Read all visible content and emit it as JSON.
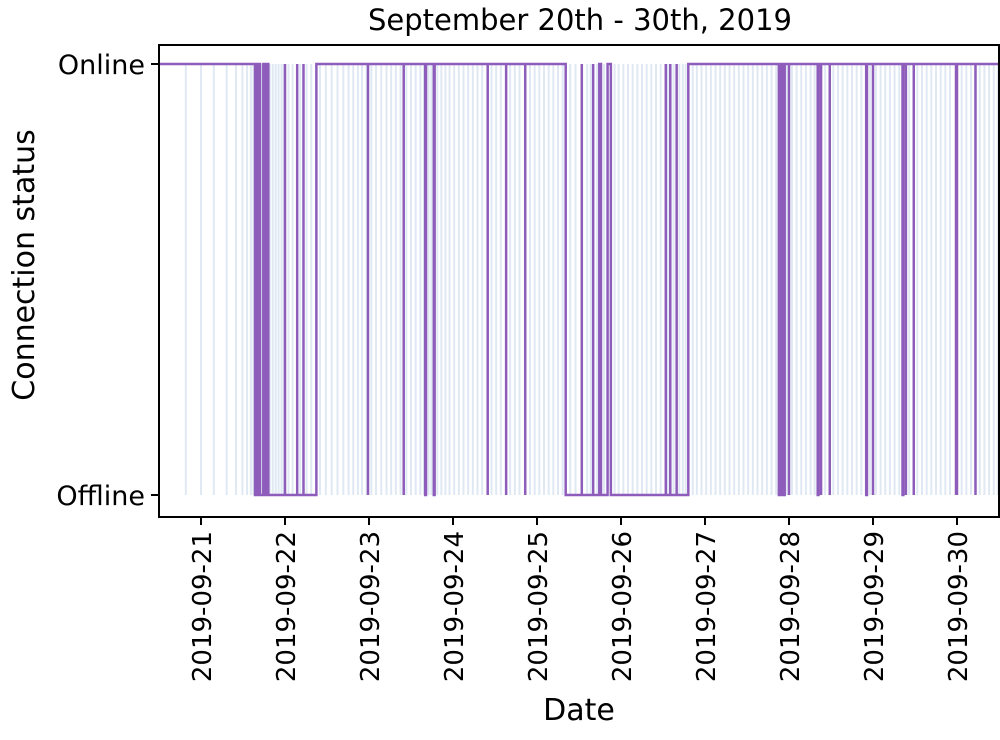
{
  "chart_data": {
    "type": "line",
    "title": "September 20th - 30th, 2019",
    "xlabel": "Date",
    "ylabel": "Connection status",
    "x_axis_type": "date",
    "xlim": [
      "2019-09-20T12:00",
      "2019-09-30T12:00"
    ],
    "y_categories": [
      "Offline",
      "Online"
    ],
    "ylim": [
      0,
      1
    ],
    "grid": false,
    "legend": "none",
    "colors": {
      "line": "#8e5cbb",
      "band": "#dfe8f3"
    },
    "x_ticks": [
      "2019-09-21",
      "2019-09-22",
      "2019-09-23",
      "2019-09-24",
      "2019-09-25",
      "2019-09-26",
      "2019-09-27",
      "2019-09-28",
      "2019-09-29",
      "2019-09-30"
    ],
    "series": [
      {
        "points": [
          [
            "2019-09-20T12:00",
            1
          ],
          [
            "2019-09-21T15:26",
            1
          ],
          [
            "2019-09-21T15:26",
            0
          ],
          [
            "2019-09-21T15:40",
            0
          ],
          [
            "2019-09-21T15:40",
            1
          ],
          [
            "2019-09-21T15:54",
            1
          ],
          [
            "2019-09-21T15:54",
            0
          ],
          [
            "2019-09-21T16:37",
            0
          ],
          [
            "2019-09-21T16:37",
            1
          ],
          [
            "2019-09-21T16:51",
            1
          ],
          [
            "2019-09-21T16:51",
            0
          ],
          [
            "2019-09-21T17:48",
            0
          ],
          [
            "2019-09-21T17:48",
            1
          ],
          [
            "2019-09-21T18:17",
            1
          ],
          [
            "2019-09-21T18:17",
            0
          ],
          [
            "2019-09-21T18:31",
            0
          ],
          [
            "2019-09-21T18:31",
            1
          ],
          [
            "2019-09-21T19:14",
            1
          ],
          [
            "2019-09-21T19:14",
            0
          ],
          [
            "2019-09-21T19:14",
            0
          ],
          [
            "2019-09-22T00:00",
            0
          ],
          [
            "2019-09-22T00:00",
            1
          ],
          [
            "2019-09-22T00:00",
            1
          ],
          [
            "2019-09-22T00:00",
            0
          ],
          [
            "2019-09-22T03:29",
            0
          ],
          [
            "2019-09-22T03:29",
            1
          ],
          [
            "2019-09-22T03:29",
            1
          ],
          [
            "2019-09-22T03:29",
            0
          ],
          [
            "2019-09-22T05:17",
            0
          ],
          [
            "2019-09-22T05:17",
            1
          ],
          [
            "2019-09-22T05:17",
            1
          ],
          [
            "2019-09-22T05:17",
            0
          ],
          [
            "2019-09-22T08:58",
            0
          ],
          [
            "2019-09-22T08:58",
            1
          ],
          [
            "2019-09-22T23:43",
            1
          ],
          [
            "2019-09-22T23:43",
            0
          ],
          [
            "2019-09-22T23:43",
            0
          ],
          [
            "2019-09-22T23:43",
            1
          ],
          [
            "2019-09-23T09:55",
            1
          ],
          [
            "2019-09-23T09:55",
            0
          ],
          [
            "2019-09-23T09:55",
            0
          ],
          [
            "2019-09-23T09:55",
            1
          ],
          [
            "2019-09-23T16:03",
            1
          ],
          [
            "2019-09-23T16:03",
            0
          ],
          [
            "2019-09-23T16:17",
            0
          ],
          [
            "2019-09-23T16:17",
            1
          ],
          [
            "2019-09-23T18:31",
            1
          ],
          [
            "2019-09-23T18:31",
            0
          ],
          [
            "2019-09-23T18:45",
            0
          ],
          [
            "2019-09-23T18:45",
            1
          ],
          [
            "2019-09-24T09:55",
            1
          ],
          [
            "2019-09-24T09:55",
            0
          ],
          [
            "2019-09-24T09:55",
            0
          ],
          [
            "2019-09-24T09:55",
            1
          ],
          [
            "2019-09-24T15:11",
            1
          ],
          [
            "2019-09-24T15:11",
            0
          ],
          [
            "2019-09-24T15:11",
            0
          ],
          [
            "2019-09-24T15:11",
            1
          ],
          [
            "2019-09-24T20:38",
            1
          ],
          [
            "2019-09-24T20:38",
            0
          ],
          [
            "2019-09-24T20:38",
            0
          ],
          [
            "2019-09-24T20:38",
            1
          ],
          [
            "2019-09-25T08:12",
            1
          ],
          [
            "2019-09-25T08:12",
            0
          ],
          [
            "2019-09-25T12:48",
            0
          ],
          [
            "2019-09-25T12:48",
            1
          ],
          [
            "2019-09-25T12:48",
            1
          ],
          [
            "2019-09-25T12:48",
            0
          ],
          [
            "2019-09-25T16:03",
            0
          ],
          [
            "2019-09-25T16:03",
            1
          ],
          [
            "2019-09-25T16:03",
            1
          ],
          [
            "2019-09-25T16:03",
            0
          ],
          [
            "2019-09-25T17:48",
            0
          ],
          [
            "2019-09-25T17:48",
            1
          ],
          [
            "2019-09-25T18:17",
            1
          ],
          [
            "2019-09-25T18:17",
            0
          ],
          [
            "2019-09-25T20:10",
            0
          ],
          [
            "2019-09-25T20:10",
            1
          ],
          [
            "2019-09-25T21:06",
            1
          ],
          [
            "2019-09-25T21:06",
            0
          ],
          [
            "2019-09-26T12:48",
            0
          ],
          [
            "2019-09-26T12:48",
            1
          ],
          [
            "2019-09-26T12:48",
            1
          ],
          [
            "2019-09-26T12:48",
            0
          ],
          [
            "2019-09-26T14:05",
            0
          ],
          [
            "2019-09-26T14:05",
            1
          ],
          [
            "2019-09-26T14:05",
            1
          ],
          [
            "2019-09-26T14:05",
            0
          ],
          [
            "2019-09-26T15:54",
            0
          ],
          [
            "2019-09-26T15:54",
            1
          ],
          [
            "2019-09-26T15:54",
            1
          ],
          [
            "2019-09-26T15:54",
            0
          ],
          [
            "2019-09-26T19:14",
            0
          ],
          [
            "2019-09-26T19:14",
            1
          ],
          [
            "2019-09-27T21:06",
            1
          ],
          [
            "2019-09-27T21:06",
            0
          ],
          [
            "2019-09-27T21:20",
            0
          ],
          [
            "2019-09-27T21:20",
            1
          ],
          [
            "2019-09-27T21:48",
            1
          ],
          [
            "2019-09-27T21:48",
            0
          ],
          [
            "2019-09-27T22:03",
            0
          ],
          [
            "2019-09-27T22:03",
            1
          ],
          [
            "2019-09-27T22:31",
            1
          ],
          [
            "2019-09-27T22:31",
            0
          ],
          [
            "2019-09-27T22:46",
            0
          ],
          [
            "2019-09-27T22:46",
            1
          ],
          [
            "2019-09-28T00:00",
            1
          ],
          [
            "2019-09-28T00:00",
            0
          ],
          [
            "2019-09-28T00:00",
            0
          ],
          [
            "2019-09-28T00:00",
            1
          ],
          [
            "2019-09-28T08:12",
            1
          ],
          [
            "2019-09-28T08:12",
            0
          ],
          [
            "2019-09-28T08:26",
            0
          ],
          [
            "2019-09-28T08:26",
            1
          ],
          [
            "2019-09-28T09:10",
            1
          ],
          [
            "2019-09-28T09:10",
            0
          ],
          [
            "2019-09-28T09:10",
            0
          ],
          [
            "2019-09-28T09:10",
            1
          ],
          [
            "2019-09-28T11:39",
            1
          ],
          [
            "2019-09-28T11:39",
            0
          ],
          [
            "2019-09-28T11:39",
            0
          ],
          [
            "2019-09-28T11:39",
            1
          ],
          [
            "2019-09-28T22:03",
            1
          ],
          [
            "2019-09-28T22:03",
            0
          ],
          [
            "2019-09-28T22:17",
            0
          ],
          [
            "2019-09-28T22:17",
            1
          ],
          [
            "2019-09-29T00:00",
            1
          ],
          [
            "2019-09-29T00:00",
            0
          ],
          [
            "2019-09-29T00:00",
            0
          ],
          [
            "2019-09-29T00:00",
            1
          ],
          [
            "2019-09-29T08:26",
            1
          ],
          [
            "2019-09-29T08:26",
            0
          ],
          [
            "2019-09-29T08:40",
            0
          ],
          [
            "2019-09-29T08:40",
            1
          ],
          [
            "2019-09-29T09:24",
            1
          ],
          [
            "2019-09-29T09:24",
            0
          ],
          [
            "2019-09-29T09:24",
            0
          ],
          [
            "2019-09-29T09:24",
            1
          ],
          [
            "2019-09-29T11:39",
            1
          ],
          [
            "2019-09-29T11:39",
            0
          ],
          [
            "2019-09-29T11:39",
            0
          ],
          [
            "2019-09-29T11:39",
            1
          ],
          [
            "2019-09-29T23:43",
            1
          ],
          [
            "2019-09-29T23:43",
            0
          ],
          [
            "2019-09-29T23:43",
            0
          ],
          [
            "2019-09-29T23:43",
            1
          ],
          [
            "2019-09-30T00:00",
            1
          ],
          [
            "2019-09-30T00:00",
            0
          ],
          [
            "2019-09-30T00:00",
            0
          ],
          [
            "2019-09-30T00:00",
            1
          ],
          [
            "2019-09-30T05:17",
            1
          ],
          [
            "2019-09-30T05:17",
            0
          ],
          [
            "2019-09-30T05:17",
            0
          ],
          [
            "2019-09-30T05:17",
            1
          ],
          [
            "2019-09-30T12:00",
            1
          ]
        ]
      }
    ],
    "measurement_times": [
      "2019-09-20T19:40",
      "2019-09-21T00:00",
      "2019-09-21T03:40",
      "2019-09-21T07:20",
      "2019-09-21T10:00",
      "2019-09-21T11:50",
      "2019-09-21T13:10",
      "2019-09-21T14:15",
      "2019-09-21T15:00",
      "2019-09-21T16:20",
      "2019-09-21T17:20",
      "2019-09-21T18:00",
      "2019-09-21T18:50",
      "2019-09-21T19:40",
      "2019-09-21T20:30",
      "2019-09-21T21:20",
      "2019-09-21T22:10",
      "2019-09-21T23:00",
      "2019-09-21T23:40",
      "2019-09-22T01:00",
      "2019-09-22T02:10",
      "2019-09-22T04:20",
      "2019-09-22T06:10",
      "2019-09-22T07:30",
      "2019-09-22T10:00",
      "2019-09-22T11:40",
      "2019-09-22T13:20",
      "2019-09-22T15:00",
      "2019-09-22T16:40",
      "2019-09-22T18:10",
      "2019-09-22T19:30",
      "2019-09-22T20:50",
      "2019-09-22T22:00",
      "2019-09-22T23:20",
      "2019-09-23T00:40",
      "2019-09-23T02:00",
      "2019-09-23T03:30",
      "2019-09-23T05:00",
      "2019-09-23T06:20",
      "2019-09-23T07:40",
      "2019-09-23T09:00",
      "2019-09-23T10:40",
      "2019-09-23T12:00",
      "2019-09-23T13:20",
      "2019-09-23T14:40",
      "2019-09-23T15:40",
      "2019-09-23T17:00",
      "2019-09-23T17:50",
      "2019-09-23T19:30",
      "2019-09-23T20:40",
      "2019-09-23T21:50",
      "2019-09-23T23:00",
      "2019-09-24T00:20",
      "2019-09-24T01:40",
      "2019-09-24T03:00",
      "2019-09-24T04:20",
      "2019-09-24T05:40",
      "2019-09-24T07:00",
      "2019-09-24T08:20",
      "2019-09-24T11:00",
      "2019-09-24T12:20",
      "2019-09-24T13:40",
      "2019-09-24T16:20",
      "2019-09-24T17:40",
      "2019-09-24T19:00",
      "2019-09-24T22:00",
      "2019-09-24T23:20",
      "2019-09-25T00:40",
      "2019-09-25T02:00",
      "2019-09-25T03:20",
      "2019-09-25T04:40",
      "2019-09-25T06:00",
      "2019-09-25T07:20",
      "2019-09-25T09:30",
      "2019-09-25T11:00",
      "2019-09-25T14:20",
      "2019-09-25T15:20",
      "2019-09-25T17:10",
      "2019-09-25T19:10",
      "2019-09-25T22:10",
      "2019-09-25T23:20",
      "2019-09-26T00:40",
      "2019-09-26T02:00",
      "2019-09-26T03:20",
      "2019-09-26T04:40",
      "2019-09-26T06:00",
      "2019-09-26T07:20",
      "2019-09-26T08:40",
      "2019-09-26T10:00",
      "2019-09-26T11:20",
      "2019-09-26T13:20",
      "2019-09-26T15:00",
      "2019-09-26T16:40",
      "2019-09-26T17:40",
      "2019-09-26T18:30",
      "2019-09-26T20:30",
      "2019-09-26T21:40",
      "2019-09-26T23:00",
      "2019-09-27T00:20",
      "2019-09-27T01:40",
      "2019-09-27T03:00",
      "2019-09-27T04:20",
      "2019-09-27T05:40",
      "2019-09-27T07:00",
      "2019-09-27T08:20",
      "2019-09-27T09:40",
      "2019-09-27T11:00",
      "2019-09-27T12:20",
      "2019-09-27T13:40",
      "2019-09-27T15:00",
      "2019-09-27T16:20",
      "2019-09-27T17:40",
      "2019-09-27T19:00",
      "2019-09-27T20:20",
      "2019-09-27T23:20",
      "2019-09-28T00:50",
      "2019-09-28T02:10",
      "2019-09-28T03:30",
      "2019-09-28T04:50",
      "2019-09-28T06:10",
      "2019-09-28T07:20",
      "2019-09-28T10:20",
      "2019-09-28T12:40",
      "2019-09-28T14:00",
      "2019-09-28T15:20",
      "2019-09-28T16:40",
      "2019-09-28T18:00",
      "2019-09-28T19:20",
      "2019-09-28T20:40",
      "2019-09-28T23:10",
      "2019-09-29T00:50",
      "2019-09-29T02:10",
      "2019-09-29T03:30",
      "2019-09-29T04:50",
      "2019-09-29T06:10",
      "2019-09-29T07:30",
      "2019-09-29T10:20",
      "2019-09-29T12:40",
      "2019-09-29T14:00",
      "2019-09-29T15:20",
      "2019-09-29T16:40",
      "2019-09-29T18:00",
      "2019-09-29T19:20",
      "2019-09-29T20:40",
      "2019-09-29T22:00",
      "2019-09-30T01:20",
      "2019-09-30T02:40",
      "2019-09-30T04:00",
      "2019-09-30T06:30",
      "2019-09-30T07:50",
      "2019-09-30T09:10",
      "2019-09-30T10:30",
      "2019-09-30T11:40"
    ]
  }
}
